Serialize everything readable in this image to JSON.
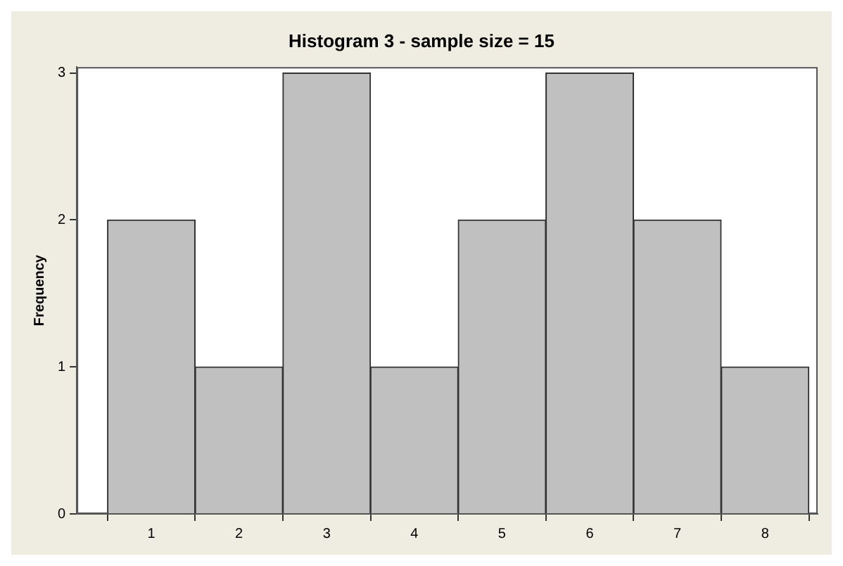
{
  "chart_data": {
    "type": "histogram",
    "title": "Histogram 3 - sample size = 15",
    "ylabel": "Frequency",
    "bins": [
      0.5,
      1.5,
      2.5,
      3.5,
      4.5,
      5.5,
      6.5,
      7.5,
      8.5
    ],
    "values": [
      2,
      1,
      3,
      1,
      2,
      3,
      2,
      1
    ],
    "color": "#c0c0c0",
    "xlim": [
      0.15,
      8.6
    ],
    "xticks": [
      1,
      2,
      3,
      4,
      5,
      6,
      7,
      8
    ],
    "ylim": [
      0,
      3.04
    ],
    "yticks": [
      0,
      1,
      2,
      3
    ],
    "grid": false,
    "legend": false
  }
}
